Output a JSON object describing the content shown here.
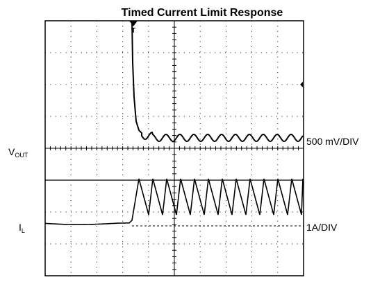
{
  "title": "Timed Current Limit Response",
  "trigger_marker": "T",
  "channels": [
    {
      "label": "V",
      "subscript": "OUT",
      "scale": "500 mV/DIV"
    },
    {
      "label": "I",
      "subscript": "L",
      "scale": "1A/DIV"
    }
  ]
}
